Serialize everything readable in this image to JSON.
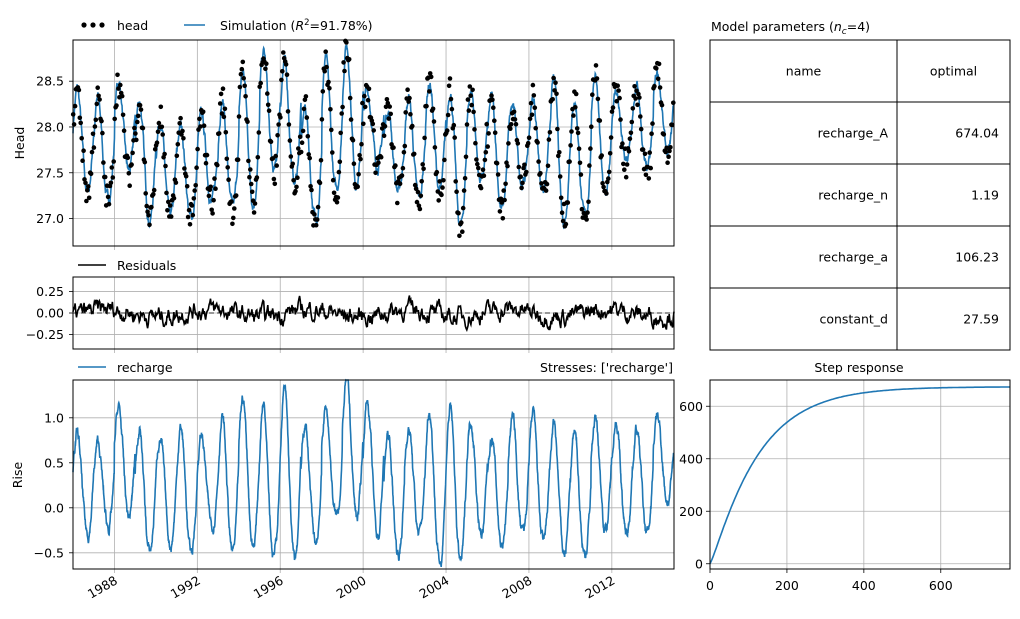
{
  "chart_data": [
    {
      "panel": "head",
      "type": "line",
      "ylabel": "Head",
      "ylim": [
        26.7,
        28.95
      ],
      "xlim": [
        1986.0,
        2015.0
      ],
      "yticks": [
        "27.0",
        "27.5",
        "28.0",
        "28.5"
      ],
      "grid": true,
      "legend_placement": "top-left, above the axes",
      "series": [
        {
          "name": "head",
          "kind": "observations",
          "color": "#000000"
        },
        {
          "name": "Simulation (R²=91.78%)",
          "kind": "simulated",
          "color": "#1f77b4"
        }
      ],
      "annual_cycle": {
        "years": [
          1986,
          1987,
          1988,
          1989,
          1990,
          1991,
          1992,
          1993,
          1994,
          1995,
          1996,
          1997,
          1998,
          1999,
          2000,
          2001,
          2002,
          2003,
          2004,
          2005,
          2006,
          2007,
          2008,
          2009,
          2010,
          2011,
          2012,
          2013,
          2014
        ],
        "sim_high": [
          28.4,
          28.3,
          28.5,
          28.3,
          28.1,
          28.0,
          28.1,
          28.3,
          28.6,
          28.8,
          28.7,
          28.2,
          28.7,
          28.9,
          28.4,
          28.2,
          28.3,
          28.5,
          28.4,
          28.4,
          28.3,
          28.2,
          28.3,
          28.5,
          28.3,
          28.6,
          28.4,
          28.4,
          28.6
        ],
        "sim_low": [
          27.3,
          27.2,
          27.5,
          27.0,
          27.0,
          27.0,
          27.2,
          27.1,
          27.2,
          27.5,
          27.4,
          27.0,
          27.3,
          27.4,
          27.6,
          27.3,
          27.2,
          27.3,
          26.9,
          27.4,
          27.1,
          27.4,
          27.3,
          27.0,
          27.0,
          27.2,
          27.6,
          27.5,
          27.7
        ]
      }
    },
    {
      "panel": "residuals",
      "type": "line",
      "ylim": [
        -0.42,
        0.42
      ],
      "xlim": [
        1986.0,
        2015.0
      ],
      "yticks": [
        "0.25",
        "0.00",
        "−0.25"
      ],
      "grid": true,
      "reference_line": 0.0,
      "series": [
        {
          "name": "Residuals",
          "color": "#000000"
        }
      ]
    },
    {
      "panel": "stresses",
      "type": "line",
      "title": "Stresses: ['recharge']",
      "ylabel": "Rise",
      "ylim": [
        -0.68,
        1.42
      ],
      "xlim": [
        1986.0,
        2015.0
      ],
      "yticks": [
        "1.0",
        "0.5",
        "0.0",
        "−0.5"
      ],
      "xticks": [
        "1988",
        "1992",
        "1996",
        "2000",
        "2004",
        "2008",
        "2012"
      ],
      "grid": true,
      "series": [
        {
          "name": "recharge",
          "color": "#1f77b4"
        }
      ],
      "annual_cycle": {
        "years": [
          1986,
          1987,
          1988,
          1989,
          1990,
          1991,
          1992,
          1993,
          1994,
          1995,
          1996,
          1997,
          1998,
          1999,
          2000,
          2001,
          2002,
          2003,
          2004,
          2005,
          2006,
          2007,
          2008,
          2009,
          2010,
          2011,
          2012,
          2013,
          2014
        ],
        "high": [
          0.8,
          0.7,
          1.1,
          0.9,
          0.8,
          0.9,
          0.8,
          1.0,
          1.2,
          1.2,
          1.3,
          0.9,
          1.1,
          1.4,
          1.2,
          0.8,
          0.9,
          1.1,
          1.1,
          1.0,
          0.8,
          1.0,
          1.0,
          0.9,
          0.8,
          1.0,
          1.0,
          0.9,
          1.0
        ],
        "low": [
          -0.3,
          -0.2,
          -0.1,
          -0.5,
          -0.4,
          -0.5,
          -0.2,
          -0.5,
          -0.4,
          -0.5,
          -0.6,
          -0.4,
          -0.1,
          -0.1,
          -0.3,
          -0.5,
          -0.3,
          -0.6,
          -0.6,
          -0.3,
          -0.4,
          -0.3,
          -0.4,
          -0.5,
          -0.5,
          -0.2,
          -0.3,
          -0.3,
          0.1
        ]
      }
    },
    {
      "panel": "step-response",
      "type": "line",
      "title": "Step response",
      "xlim": [
        0,
        780
      ],
      "ylim": [
        -20,
        700
      ],
      "xticks": [
        "0",
        "200",
        "400",
        "600"
      ],
      "yticks": [
        "0",
        "200",
        "400",
        "600"
      ],
      "grid": true,
      "series": [
        {
          "color": "#1f77b4",
          "A": 674.04,
          "n": 1.19,
          "a": 106.23
        }
      ]
    },
    {
      "panel": "parameters",
      "type": "table",
      "title": "Model parameters (n_c=4)",
      "title_main": "Model parameters (",
      "title_sym": "n",
      "title_sub": "c",
      "title_tail": "=4)",
      "columns": [
        "name",
        "optimal"
      ],
      "rows": [
        [
          "recharge_A",
          "674.04"
        ],
        [
          "recharge_n",
          "1.19"
        ],
        [
          "recharge_a",
          "106.23"
        ],
        [
          "constant_d",
          "27.59"
        ]
      ]
    }
  ],
  "legend": {
    "head": "head",
    "sim_prefix": "Simulation (",
    "sim_r": "R",
    "sim_sup": "2",
    "sim_tail": "=91.78%)",
    "residuals": "Residuals",
    "recharge": "recharge"
  },
  "colors": {
    "simulation": "#1f77b4",
    "observations": "#000000",
    "grid": "#b0b0b0"
  }
}
